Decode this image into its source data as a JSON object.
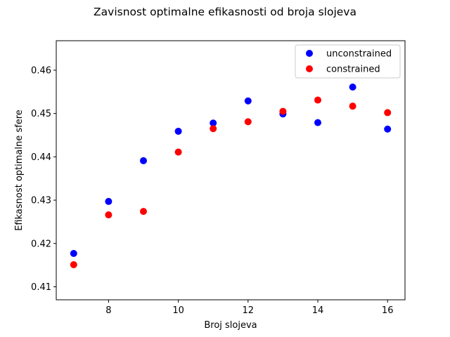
{
  "chart_data": {
    "type": "scatter",
    "title": "Zavisnost optimalne efikasnosti od broja slojeva",
    "xlabel": "Broj slojeva",
    "ylabel": "Efikasnost optimalne sfere",
    "xlim": [
      6.5,
      16.5
    ],
    "ylim": [
      0.407,
      0.4668
    ],
    "xticks": [
      8,
      10,
      12,
      14,
      16
    ],
    "xtick_labels": [
      "8",
      "10",
      "12",
      "14",
      "16"
    ],
    "yticks": [
      0.41,
      0.42,
      0.43,
      0.44,
      0.45,
      0.46
    ],
    "ytick_labels": [
      "0.41",
      "0.42",
      "0.43",
      "0.44",
      "0.45",
      "0.46"
    ],
    "grid": false,
    "legend_position": "top-right",
    "series": [
      {
        "name": "unconstrained",
        "color": "#0000ff",
        "x": [
          7,
          8,
          9,
          10,
          11,
          12,
          13,
          14,
          15,
          16
        ],
        "y": [
          0.4177,
          0.4297,
          0.4391,
          0.4459,
          0.4478,
          0.4529,
          0.4499,
          0.4479,
          0.4561,
          0.4464
        ]
      },
      {
        "name": "constrained",
        "color": "#ff0000",
        "x": [
          7,
          8,
          9,
          10,
          11,
          12,
          13,
          14,
          15,
          16
        ],
        "y": [
          0.4151,
          0.4266,
          0.4274,
          0.4411,
          0.4465,
          0.4481,
          0.4505,
          0.4531,
          0.4517,
          0.4502
        ]
      }
    ]
  }
}
